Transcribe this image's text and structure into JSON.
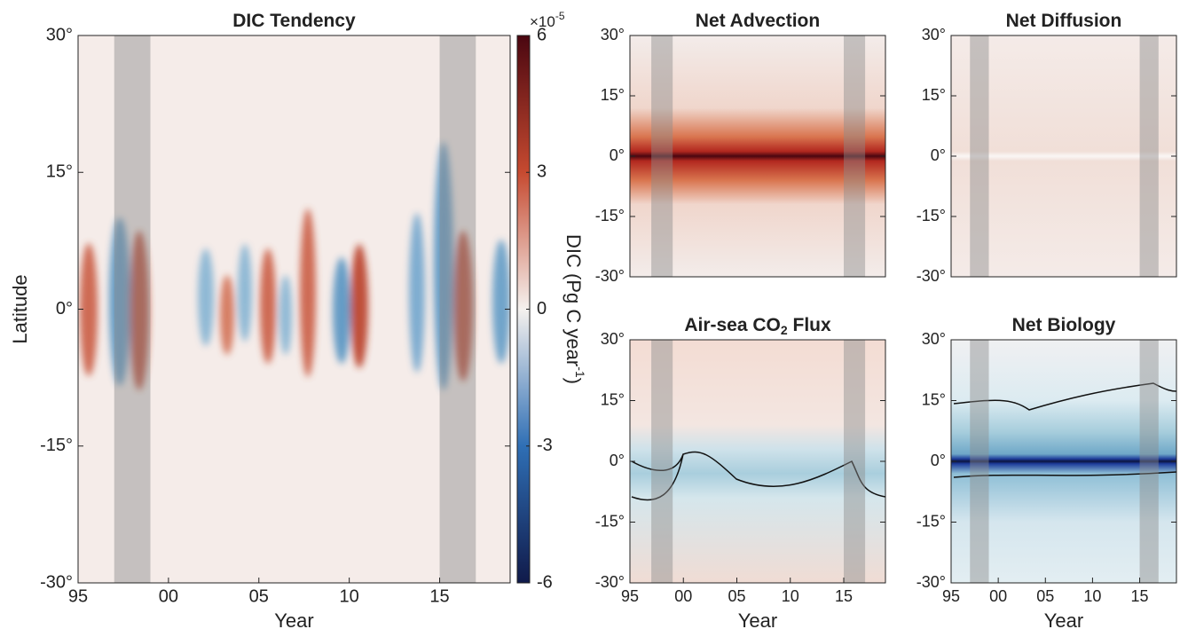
{
  "chart_data": [
    {
      "type": "heatmap",
      "title": "DIC Tendency",
      "ylabel": "Latitude",
      "xlabel": "Year",
      "xlim": [
        1995,
        2018.9
      ],
      "ylim": [
        -30,
        30
      ],
      "xticks": [
        {
          "value": 1995,
          "label": "95"
        },
        {
          "value": 2000,
          "label": "00"
        },
        {
          "value": 2005,
          "label": "05"
        },
        {
          "value": 2010,
          "label": "10"
        },
        {
          "value": 2015,
          "label": "15"
        }
      ],
      "yticks": [
        {
          "value": -30,
          "label": "-30°"
        },
        {
          "value": -15,
          "label": "-15°"
        },
        {
          "value": 0,
          "label": "0°"
        },
        {
          "value": 15,
          "label": "15°"
        },
        {
          "value": 30,
          "label": "30°"
        }
      ],
      "shaded_periods": [
        [
          1997,
          1999
        ],
        [
          2015,
          2017
        ]
      ],
      "colorbar": {
        "ylim": [
          -6,
          6
        ],
        "yticks": [
          -6,
          -3,
          0,
          3,
          6
        ],
        "multiplier": "×10",
        "multiplier_exponent": "-5",
        "label": "DIC (Pg C year",
        "label_exponent": "-1",
        "label_end": ")",
        "colors": [
          "#101a4a",
          "#2f6fb5",
          "#f5f1ee",
          "#c64a30",
          "#4a0610"
        ]
      }
    },
    {
      "type": "heatmap",
      "title": "Net Advection",
      "xlim": [
        1995,
        2018.9
      ],
      "ylim": [
        -30,
        30
      ],
      "yticks": [
        {
          "value": -30,
          "label": "-30°"
        },
        {
          "value": -15,
          "label": "-15°"
        },
        {
          "value": 0,
          "label": "0°"
        },
        {
          "value": 15,
          "label": "15°"
        },
        {
          "value": 30,
          "label": "30°"
        }
      ],
      "shaded_periods": [
        [
          1997,
          1999
        ],
        [
          2015,
          2017
        ]
      ]
    },
    {
      "type": "heatmap",
      "title": "Net Diffusion",
      "xlim": [
        1995,
        2018.9
      ],
      "ylim": [
        -30,
        30
      ],
      "yticks": [
        {
          "value": -30,
          "label": "-30°"
        },
        {
          "value": -15,
          "label": "-15°"
        },
        {
          "value": 0,
          "label": "0°"
        },
        {
          "value": 15,
          "label": "15°"
        },
        {
          "value": 30,
          "label": "30°"
        }
      ],
      "shaded_periods": [
        [
          1997,
          1999
        ],
        [
          2015,
          2017
        ]
      ]
    },
    {
      "type": "heatmap",
      "title": "Air-sea CO",
      "title_subscript": "2",
      "title_end": " Flux",
      "xlabel": "Year",
      "xlim": [
        1995,
        2018.9
      ],
      "ylim": [
        -30,
        30
      ],
      "xticks": [
        {
          "value": 1995,
          "label": "95"
        },
        {
          "value": 2000,
          "label": "00"
        },
        {
          "value": 2005,
          "label": "05"
        },
        {
          "value": 2010,
          "label": "10"
        },
        {
          "value": 2015,
          "label": "15"
        }
      ],
      "yticks": [
        {
          "value": -30,
          "label": "-30°"
        },
        {
          "value": -15,
          "label": "-15°"
        },
        {
          "value": 0,
          "label": "0°"
        },
        {
          "value": 15,
          "label": "15°"
        },
        {
          "value": 30,
          "label": "30°"
        }
      ],
      "shaded_periods": [
        [
          1997,
          1999
        ],
        [
          2015,
          2017
        ]
      ]
    },
    {
      "type": "heatmap",
      "title": "Net Biology",
      "xlabel": "Year",
      "xlim": [
        1995,
        2018.9
      ],
      "ylim": [
        -30,
        30
      ],
      "xticks": [
        {
          "value": 1995,
          "label": "95"
        },
        {
          "value": 2000,
          "label": "00"
        },
        {
          "value": 2005,
          "label": "05"
        },
        {
          "value": 2010,
          "label": "10"
        },
        {
          "value": 2015,
          "label": "15"
        }
      ],
      "yticks": [
        {
          "value": -30,
          "label": "-30°"
        },
        {
          "value": -15,
          "label": "-15°"
        },
        {
          "value": 0,
          "label": "0°"
        },
        {
          "value": 15,
          "label": "15°"
        },
        {
          "value": 30,
          "label": "30°"
        }
      ],
      "shaded_periods": [
        [
          1997,
          1999
        ],
        [
          2015,
          2017
        ]
      ]
    }
  ]
}
